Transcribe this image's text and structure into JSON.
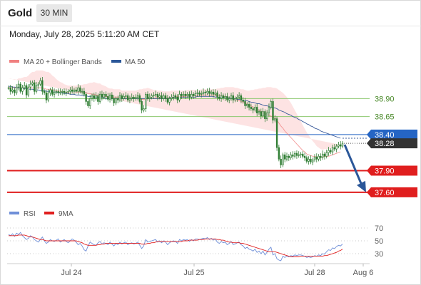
{
  "header": {
    "asset": "Gold",
    "timeframe": "30 MIN",
    "datetime": "Monday, July 28, 2025 5:11:20 AM CET"
  },
  "colors": {
    "candle_up": "#2e7d32",
    "candle_down": "#2e7d32",
    "ma20": "#f08080",
    "bollinger_fill": "#fcd9d9",
    "ma50": "#3b5b9a",
    "resistance": "#8dc86f",
    "pivot": "#2565c4",
    "support": "#e01e1e",
    "arrow": "#2b5799",
    "last_price_label": "#333333",
    "rsi": "#6f8fd8",
    "rsi_ma": "#e01e1e"
  },
  "chart_data": [
    {
      "type": "candlestick",
      "legend": [
        "MA 20 + Bollinger Bands",
        "MA 50"
      ],
      "x_ticks": [
        "Jul 24",
        "Jul 25",
        "Jul 28",
        "Aug 6"
      ],
      "ylim": [
        37.48,
        39.2
      ],
      "levels": [
        {
          "label": "38.90",
          "value": 38.9,
          "kind": "resistance"
        },
        {
          "label": "38.65",
          "value": 38.65,
          "kind": "resistance"
        },
        {
          "label": "38.40",
          "value": 38.4,
          "kind": "pivot"
        },
        {
          "label": "37.90",
          "value": 37.9,
          "kind": "support"
        },
        {
          "label": "37.60",
          "value": 37.6,
          "kind": "support"
        }
      ],
      "last_price": {
        "label": "38.28",
        "value": 38.28
      },
      "closes": [
        39.05,
        39.0,
        39.02,
        38.98,
        39.06,
        39.1,
        39.0,
        39.05,
        39.08,
        38.95,
        39.06,
        39.1,
        39.12,
        39.0,
        39.08,
        39.1,
        39.15,
        39.0,
        38.98,
        38.88,
        38.98,
        39.02,
        38.96,
        38.99,
        39.0,
        38.98,
        38.99,
        39.0,
        38.98,
        38.99,
        39.0,
        39.02,
        39.0,
        39.02,
        39.0,
        39.05,
        39.0,
        39.0,
        38.96,
        38.86,
        38.8,
        38.9,
        38.94,
        38.9,
        38.94,
        38.86,
        38.96,
        38.92,
        38.96,
        38.93,
        38.89,
        38.95,
        38.9,
        38.84,
        38.9,
        38.88,
        38.94,
        38.9,
        38.93,
        38.94,
        38.88,
        38.9,
        38.92,
        38.9,
        38.92,
        38.94,
        38.86,
        38.74,
        38.76,
        38.96,
        38.9,
        38.92,
        38.94,
        38.95,
        38.96,
        38.92,
        38.94,
        38.9,
        38.94,
        38.9,
        38.85,
        38.9,
        38.92,
        38.94,
        38.92,
        38.88,
        38.96,
        38.94,
        38.96,
        38.94,
        38.96,
        38.92,
        38.96,
        38.94,
        38.97,
        38.98,
        38.96,
        38.97,
        38.99,
        38.98,
        39.0,
        38.97,
        38.99,
        38.96,
        38.98,
        38.92,
        38.9,
        38.94,
        38.91,
        38.93,
        38.88,
        38.9,
        38.94,
        38.88,
        38.9,
        38.92,
        38.94,
        38.88,
        38.86,
        38.8,
        38.82,
        38.78,
        38.76,
        38.74,
        38.78,
        38.7,
        38.72,
        38.66,
        38.72,
        38.62,
        38.7,
        38.78,
        38.86,
        38.6,
        38.62,
        38.22,
        38.06,
        37.98,
        38.12,
        38.06,
        38.1,
        38.08,
        38.12,
        38.1,
        38.14,
        38.11,
        38.12,
        38.13,
        38.1,
        38.08,
        38.03,
        38.06,
        38.02,
        38.05,
        38.09,
        38.06,
        38.1,
        38.08,
        38.13,
        38.1,
        38.15,
        38.18,
        38.16,
        38.22,
        38.2,
        38.24,
        38.26,
        38.24,
        38.28
      ],
      "ma20": [
        39.06,
        39.05,
        39.05,
        39.05,
        39.04,
        39.05,
        39.05,
        39.05,
        39.05,
        39.04,
        39.04,
        39.05,
        39.05,
        39.04,
        39.05,
        39.05,
        39.05,
        39.05,
        39.04,
        39.03,
        39.03,
        39.03,
        39.02,
        39.02,
        39.01,
        39.01,
        39.0,
        39.0,
        38.99,
        38.99,
        38.98,
        38.98,
        38.98,
        38.98,
        38.98,
        38.99,
        38.99,
        38.99,
        38.99,
        38.98,
        38.97,
        38.97,
        38.96,
        38.96,
        38.95,
        38.94,
        38.94,
        38.93,
        38.93,
        38.93,
        38.92,
        38.92,
        38.92,
        38.92,
        38.92,
        38.92,
        38.92,
        38.91,
        38.91,
        38.91,
        38.91,
        38.91,
        38.91,
        38.91,
        38.9,
        38.9,
        38.9,
        38.89,
        38.89,
        38.89,
        38.9,
        38.9,
        38.9,
        38.9,
        38.91,
        38.91,
        38.91,
        38.91,
        38.91,
        38.91,
        38.91,
        38.91,
        38.92,
        38.92,
        38.92,
        38.93,
        38.93,
        38.93,
        38.93,
        38.93,
        38.94,
        38.94,
        38.94,
        38.94,
        38.94,
        38.94,
        38.94,
        38.95,
        38.95,
        38.95,
        38.95,
        38.95,
        38.95,
        38.95,
        38.95,
        38.95,
        38.94,
        38.94,
        38.93,
        38.93,
        38.92,
        38.91,
        38.91,
        38.9,
        38.89,
        38.88,
        38.87,
        38.86,
        38.85,
        38.84,
        38.82,
        38.81,
        38.8,
        38.78,
        38.77,
        38.75,
        38.74,
        38.72,
        38.71,
        38.69,
        38.68,
        38.67,
        38.66,
        38.64,
        38.63,
        38.6,
        38.56,
        38.52,
        38.49,
        38.45,
        38.42,
        38.39,
        38.36,
        38.33,
        38.3,
        38.27,
        38.24,
        38.21,
        38.18,
        38.16,
        38.13,
        38.12,
        38.11,
        38.1,
        38.1,
        38.09,
        38.09,
        38.09,
        38.09,
        38.1,
        38.1,
        38.1,
        38.11,
        38.12,
        38.13,
        38.14,
        38.15,
        38.16
      ],
      "bb_width": [
        0.12,
        0.12,
        0.12,
        0.12,
        0.12,
        0.13,
        0.13,
        0.14,
        0.15,
        0.16,
        0.18,
        0.2,
        0.22,
        0.23,
        0.24,
        0.24,
        0.24,
        0.24,
        0.24,
        0.24,
        0.24,
        0.22,
        0.2,
        0.18,
        0.16,
        0.14,
        0.13,
        0.12,
        0.11,
        0.1,
        0.1,
        0.1,
        0.1,
        0.1,
        0.1,
        0.1,
        0.1,
        0.1,
        0.11,
        0.12,
        0.14,
        0.15,
        0.16,
        0.17,
        0.17,
        0.17,
        0.17,
        0.16,
        0.15,
        0.14,
        0.13,
        0.12,
        0.12,
        0.11,
        0.11,
        0.11,
        0.11,
        0.1,
        0.1,
        0.1,
        0.1,
        0.1,
        0.1,
        0.1,
        0.11,
        0.12,
        0.13,
        0.14,
        0.15,
        0.15,
        0.15,
        0.14,
        0.13,
        0.12,
        0.11,
        0.1,
        0.1,
        0.1,
        0.09,
        0.09,
        0.09,
        0.09,
        0.09,
        0.09,
        0.09,
        0.08,
        0.08,
        0.08,
        0.08,
        0.08,
        0.08,
        0.08,
        0.08,
        0.08,
        0.08,
        0.08,
        0.08,
        0.08,
        0.08,
        0.08,
        0.08,
        0.08,
        0.08,
        0.08,
        0.08,
        0.09,
        0.1,
        0.11,
        0.12,
        0.13,
        0.14,
        0.15,
        0.15,
        0.16,
        0.16,
        0.17,
        0.17,
        0.17,
        0.18,
        0.18,
        0.19,
        0.2,
        0.22,
        0.24,
        0.26,
        0.28,
        0.3,
        0.32,
        0.34,
        0.36,
        0.38,
        0.39,
        0.4,
        0.41,
        0.42,
        0.44,
        0.46,
        0.48,
        0.49,
        0.5,
        0.5,
        0.49,
        0.48,
        0.46,
        0.44,
        0.42,
        0.4,
        0.38,
        0.35,
        0.32,
        0.3,
        0.27,
        0.24,
        0.21,
        0.18,
        0.15,
        0.13,
        0.11,
        0.1,
        0.1,
        0.1,
        0.1,
        0.1,
        0.1,
        0.1,
        0.1,
        0.1,
        0.1,
        0.1,
        0.1,
        0.1,
        0.1
      ],
      "ma50": [
        39.07,
        39.07,
        39.06,
        39.06,
        39.05,
        39.05,
        39.05,
        39.04,
        39.04,
        39.04,
        39.03,
        39.03,
        39.03,
        39.02,
        39.02,
        39.02,
        39.01,
        39.01,
        39.01,
        39.0,
        39.0,
        39.0,
        38.99,
        38.99,
        38.99,
        38.98,
        38.98,
        38.98,
        38.97,
        38.97,
        38.97,
        38.96,
        38.96,
        38.96,
        38.95,
        38.95,
        38.95,
        38.94,
        38.94,
        38.94,
        38.93,
        38.93,
        38.93,
        38.92,
        38.92,
        38.92,
        38.91,
        38.91,
        38.91,
        38.9,
        38.9,
        38.9,
        38.9,
        38.9,
        38.9,
        38.9,
        38.9,
        38.9,
        38.9,
        38.9,
        38.9,
        38.9,
        38.9,
        38.9,
        38.9,
        38.9,
        38.9,
        38.9,
        38.9,
        38.9,
        38.9,
        38.9,
        38.9,
        38.9,
        38.9,
        38.9,
        38.9,
        38.9,
        38.9,
        38.9,
        38.9,
        38.91,
        38.91,
        38.91,
        38.91,
        38.91,
        38.91,
        38.92,
        38.92,
        38.92,
        38.92,
        38.92,
        38.92,
        38.92,
        38.92,
        38.93,
        38.93,
        38.93,
        38.93,
        38.93,
        38.93,
        38.93,
        38.93,
        38.93,
        38.92,
        38.92,
        38.92,
        38.92,
        38.91,
        38.91,
        38.91,
        38.91,
        38.9,
        38.9,
        38.9,
        38.89,
        38.89,
        38.88,
        38.88,
        38.87,
        38.87,
        38.86,
        38.85,
        38.85,
        38.84,
        38.83,
        38.83,
        38.82,
        38.81,
        38.8,
        38.8,
        38.79,
        38.78,
        38.77,
        38.77,
        38.76,
        38.74,
        38.73,
        38.72,
        38.71,
        38.69,
        38.68,
        38.67,
        38.65,
        38.64,
        38.63,
        38.61,
        38.6,
        38.58,
        38.57,
        38.55,
        38.54,
        38.52,
        38.51,
        38.49,
        38.48,
        38.47,
        38.45,
        38.44,
        38.43,
        38.42,
        38.41,
        38.4,
        38.39,
        38.38,
        38.37,
        38.36,
        38.35
      ],
      "projected_ma50": [
        38.35,
        38.35
      ],
      "projection": {
        "from": 38.28,
        "to": 37.6
      }
    },
    {
      "type": "line",
      "legend": [
        "RSI",
        "9MA"
      ],
      "y_ticks": [
        70,
        50,
        30
      ],
      "ylim": [
        20,
        80
      ],
      "rsi": [
        60,
        58,
        61,
        57,
        62,
        60,
        63,
        58,
        55,
        52,
        54,
        58,
        56,
        52,
        50,
        48,
        52,
        56,
        50,
        46,
        48,
        52,
        50,
        49,
        51,
        53,
        48,
        50,
        52,
        49,
        47,
        50,
        53,
        51,
        48,
        44,
        46,
        42,
        36,
        34,
        42,
        48,
        46,
        44,
        43,
        47,
        49,
        45,
        47,
        46,
        44,
        48,
        45,
        42,
        46,
        44,
        48,
        45,
        47,
        48,
        44,
        46,
        47,
        45,
        46,
        48,
        43,
        38,
        42,
        52,
        48,
        49,
        50,
        51,
        52,
        48,
        50,
        47,
        50,
        48,
        44,
        47,
        49,
        50,
        49,
        46,
        52,
        50,
        52,
        51,
        52,
        49,
        52,
        50,
        53,
        53,
        52,
        53,
        54,
        53,
        55,
        52,
        54,
        51,
        53,
        48,
        46,
        49,
        47,
        48,
        44,
        46,
        49,
        44,
        45,
        47,
        48,
        44,
        42,
        38,
        40,
        37,
        36,
        34,
        37,
        32,
        34,
        30,
        34,
        28,
        32,
        37,
        40,
        28,
        30,
        22,
        20,
        19,
        26,
        24,
        26,
        25,
        27,
        26,
        28,
        27,
        28,
        28,
        27,
        26,
        24,
        25,
        24,
        25,
        27,
        26,
        28,
        27,
        30,
        29,
        33,
        36,
        35,
        39,
        38,
        41,
        43,
        42,
        45
      ],
      "rsi_ma": [
        58,
        58,
        58,
        58,
        58,
        59,
        59,
        59,
        59,
        58,
        57,
        56,
        56,
        55,
        54,
        53,
        52,
        52,
        51,
        50,
        50,
        50,
        50,
        50,
        50,
        50,
        50,
        50,
        50,
        50,
        50,
        50,
        50,
        50,
        50,
        49,
        48,
        47,
        45,
        44,
        43,
        43,
        43,
        43,
        43,
        44,
        44,
        45,
        45,
        46,
        46,
        46,
        46,
        46,
        46,
        46,
        46,
        46,
        46,
        46,
        46,
        46,
        46,
        46,
        46,
        46,
        46,
        45,
        45,
        45,
        46,
        46,
        47,
        47,
        48,
        49,
        49,
        49,
        49,
        49,
        49,
        49,
        49,
        49,
        49,
        49,
        49,
        49,
        50,
        50,
        50,
        51,
        51,
        51,
        51,
        51,
        52,
        52,
        52,
        53,
        53,
        53,
        53,
        53,
        53,
        52,
        52,
        51,
        51,
        50,
        49,
        48,
        48,
        47,
        47,
        47,
        47,
        46,
        46,
        45,
        44,
        43,
        42,
        41,
        40,
        39,
        38,
        37,
        36,
        35,
        34,
        33,
        33,
        33,
        33,
        32,
        31,
        30,
        29,
        28,
        27,
        26,
        25,
        25,
        25,
        25,
        25,
        26,
        26,
        26,
        26,
        26,
        26,
        26,
        26,
        26,
        26,
        26,
        26,
        27,
        27,
        28,
        29,
        30,
        31,
        32,
        34,
        35,
        37
      ]
    }
  ]
}
